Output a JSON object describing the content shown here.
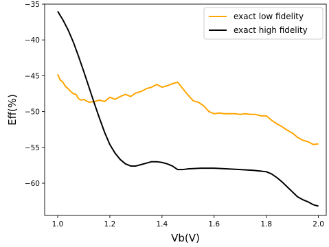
{
  "chart_data": {
    "type": "line",
    "title": "",
    "xlabel": "Vb(V)",
    "ylabel": "Eff(%)",
    "xlim": [
      0.95,
      2.03
    ],
    "ylim": [
      -64.5,
      -35
    ],
    "xticks": [
      1.0,
      1.2,
      1.4,
      1.6,
      1.8,
      2.0
    ],
    "xtick_labels": [
      "1.0",
      "1.2",
      "1.4",
      "1.6",
      "1.8",
      "2.0"
    ],
    "yticks": [
      -35,
      -40,
      -45,
      -50,
      -55,
      -60
    ],
    "ytick_labels": [
      "−35",
      "−40",
      "−45",
      "−50",
      "−55",
      "−60"
    ],
    "grid": false,
    "legend_position": "upper right",
    "series": [
      {
        "name": "exact low fidelity",
        "color": "#FFA500",
        "x": [
          1.0,
          1.01,
          1.02,
          1.03,
          1.04,
          1.05,
          1.06,
          1.07,
          1.08,
          1.09,
          1.1,
          1.12,
          1.14,
          1.16,
          1.18,
          1.2,
          1.22,
          1.24,
          1.26,
          1.28,
          1.3,
          1.32,
          1.34,
          1.36,
          1.38,
          1.4,
          1.42,
          1.44,
          1.46,
          1.48,
          1.5,
          1.52,
          1.54,
          1.56,
          1.58,
          1.6,
          1.62,
          1.64,
          1.66,
          1.68,
          1.7,
          1.72,
          1.74,
          1.76,
          1.78,
          1.8,
          1.82,
          1.84,
          1.86,
          1.88,
          1.9,
          1.92,
          1.94,
          1.96,
          1.98,
          2.0
        ],
        "values": [
          -44.8,
          -45.6,
          -45.9,
          -46.5,
          -46.8,
          -47.2,
          -47.5,
          -47.6,
          -48.2,
          -48.4,
          -48.3,
          -48.7,
          -48.6,
          -48.4,
          -48.6,
          -48.0,
          -48.3,
          -47.9,
          -47.6,
          -47.9,
          -47.4,
          -47.2,
          -46.8,
          -46.6,
          -46.2,
          -46.6,
          -46.4,
          -46.1,
          -45.9,
          -46.8,
          -47.7,
          -48.5,
          -48.7,
          -49.2,
          -50.0,
          -50.3,
          -50.2,
          -50.3,
          -50.3,
          -50.3,
          -50.4,
          -50.3,
          -50.4,
          -50.4,
          -50.6,
          -50.6,
          -51.2,
          -51.7,
          -52.1,
          -52.6,
          -53.0,
          -53.6,
          -54.0,
          -54.2,
          -54.6,
          -54.5
        ]
      },
      {
        "name": "exact high fidelity",
        "color": "#000000",
        "x": [
          1.0,
          1.02,
          1.04,
          1.06,
          1.08,
          1.1,
          1.12,
          1.14,
          1.16,
          1.18,
          1.2,
          1.22,
          1.24,
          1.26,
          1.28,
          1.3,
          1.32,
          1.34,
          1.36,
          1.38,
          1.4,
          1.42,
          1.44,
          1.46,
          1.48,
          1.5,
          1.55,
          1.6,
          1.65,
          1.7,
          1.75,
          1.8,
          1.82,
          1.84,
          1.86,
          1.88,
          1.9,
          1.92,
          1.94,
          1.96,
          1.98,
          2.0
        ],
        "values": [
          -36.0,
          -37.2,
          -38.6,
          -40.3,
          -42.3,
          -44.4,
          -46.6,
          -48.8,
          -50.9,
          -52.9,
          -54.6,
          -55.8,
          -56.7,
          -57.3,
          -57.6,
          -57.6,
          -57.4,
          -57.2,
          -57.0,
          -57.0,
          -57.1,
          -57.3,
          -57.6,
          -58.1,
          -58.1,
          -58.0,
          -57.9,
          -57.9,
          -58.0,
          -58.1,
          -58.2,
          -58.4,
          -58.7,
          -59.2,
          -59.8,
          -60.5,
          -61.2,
          -61.9,
          -62.3,
          -62.6,
          -63.0,
          -63.2
        ]
      }
    ]
  }
}
